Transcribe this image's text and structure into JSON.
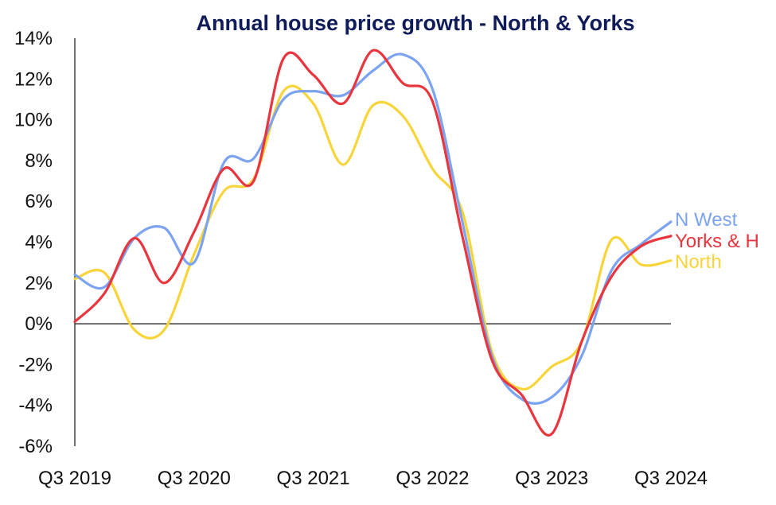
{
  "chart_data": {
    "type": "line",
    "title": "Annual house price growth - North & Yorks",
    "xlabel": "",
    "ylabel": "",
    "ylim": [
      -6,
      14
    ],
    "y_ticks": [
      14,
      12,
      10,
      8,
      6,
      4,
      2,
      0,
      -2,
      -4,
      -6
    ],
    "y_tick_labels": [
      "14%",
      "12%",
      "10%",
      "8%",
      "6%",
      "4%",
      "2%",
      "0%",
      "-2%",
      "-4%",
      "-6%"
    ],
    "x_tick_labels": [
      "Q3 2019",
      "Q3 2020",
      "Q3 2021",
      "Q3 2022",
      "Q3 2023",
      "Q3 2024"
    ],
    "x_start": "Q3 2019",
    "x_end": "Q3 2024",
    "grid": false,
    "legend": "right, at line ends",
    "series": [
      {
        "name": "N West",
        "color": "#7ba3f0",
        "x": [
          "2019-07",
          "2019-10",
          "2020-01",
          "2020-04",
          "2020-07",
          "2020-10",
          "2021-01",
          "2021-04",
          "2021-07",
          "2021-10",
          "2022-01",
          "2022-04",
          "2022-07",
          "2022-10",
          "2023-01",
          "2023-04",
          "2023-07",
          "2023-10",
          "2024-01",
          "2024-04",
          "2024-07"
        ],
        "values": [
          2.4,
          1.8,
          4.2,
          4.7,
          3.0,
          7.9,
          8.1,
          11.0,
          11.4,
          11.2,
          12.4,
          13.2,
          11.5,
          5.0,
          -1.6,
          -3.7,
          -3.6,
          -1.6,
          2.6,
          3.9,
          5.0
        ]
      },
      {
        "name": "Yorks & H",
        "color": "#e8353e",
        "x": [
          "2019-07",
          "2019-10",
          "2020-01",
          "2020-04",
          "2020-07",
          "2020-10",
          "2021-01",
          "2021-04",
          "2021-07",
          "2021-10",
          "2022-01",
          "2022-04",
          "2022-07",
          "2022-10",
          "2023-01",
          "2023-04",
          "2023-07",
          "2023-10",
          "2024-01",
          "2024-04",
          "2024-07"
        ],
        "values": [
          0.1,
          1.5,
          4.2,
          2.0,
          4.5,
          7.6,
          7.0,
          13.0,
          12.2,
          10.8,
          13.4,
          11.8,
          10.9,
          4.3,
          -1.8,
          -3.5,
          -5.4,
          -0.9,
          2.3,
          3.8,
          4.3
        ]
      },
      {
        "name": "North",
        "color": "#f7d53a",
        "x": [
          "2019-07",
          "2019-10",
          "2020-01",
          "2020-04",
          "2020-07",
          "2020-10",
          "2021-01",
          "2021-04",
          "2021-07",
          "2021-10",
          "2022-01",
          "2022-04",
          "2022-07",
          "2022-10",
          "2023-01",
          "2023-04",
          "2023-07",
          "2023-10",
          "2024-01",
          "2024-04",
          "2024-07"
        ],
        "values": [
          2.2,
          2.5,
          -0.3,
          -0.3,
          3.4,
          6.5,
          7.1,
          11.4,
          10.8,
          7.8,
          10.7,
          10.2,
          7.6,
          5.5,
          -1.4,
          -3.2,
          -2.1,
          -0.9,
          4.1,
          2.9,
          3.1
        ]
      }
    ]
  }
}
